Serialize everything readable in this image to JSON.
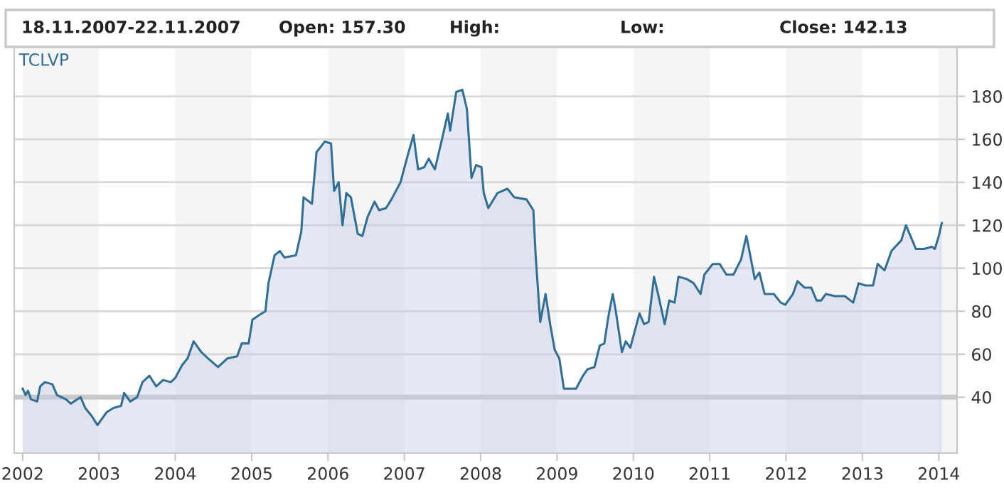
{
  "chart_data": {
    "type": "area",
    "title": "18.11.2007-22.11.2007",
    "annotations": [
      "Open: 157.30",
      "High:",
      "Low:",
      "Close: 142.13"
    ],
    "series": [
      {
        "name": "TCLVP",
        "color": "#336e94",
        "x": [
          2002.0,
          2002.04,
          2002.07,
          2002.11,
          2002.19,
          2002.23,
          2002.29,
          2002.39,
          2002.45,
          2002.57,
          2002.63,
          2002.76,
          2002.82,
          2002.91,
          2002.98,
          2003.1,
          2003.19,
          2003.29,
          2003.33,
          2003.41,
          2003.5,
          2003.57,
          2003.66,
          2003.75,
          2003.84,
          2003.94,
          2004.0,
          2004.09,
          2004.16,
          2004.24,
          2004.34,
          2004.43,
          2004.56,
          2004.68,
          2004.81,
          2004.87,
          2004.96,
          2005.01,
          2005.09,
          2005.18,
          2005.22,
          2005.3,
          2005.37,
          2005.43,
          2005.58,
          2005.65,
          2005.68,
          2005.79,
          2005.85,
          2005.96,
          2006.04,
          2006.08,
          2006.14,
          2006.19,
          2006.24,
          2006.3,
          2006.39,
          2006.45,
          2006.52,
          2006.61,
          2006.67,
          2006.76,
          2006.83,
          2006.95,
          2007.04,
          2007.12,
          2007.18,
          2007.26,
          2007.32,
          2007.4,
          2007.48,
          2007.57,
          2007.6,
          2007.68,
          2007.76,
          2007.82,
          2007.88,
          2007.94,
          2008.01,
          2008.04,
          2008.1,
          2008.22,
          2008.35,
          2008.44,
          2008.6,
          2008.69,
          2008.72,
          2008.78,
          2008.85,
          2008.91,
          2008.97,
          2009.03,
          2009.09,
          2009.25,
          2009.34,
          2009.4,
          2009.49,
          2009.56,
          2009.62,
          2009.67,
          2009.73,
          2009.77,
          2009.85,
          2009.9,
          2009.96,
          2010.08,
          2010.14,
          2010.2,
          2010.27,
          2010.33,
          2010.41,
          2010.47,
          2010.54,
          2010.59,
          2010.7,
          2010.79,
          2010.88,
          2010.93,
          2011.04,
          2011.13,
          2011.22,
          2011.31,
          2011.41,
          2011.48,
          2011.52,
          2011.59,
          2011.65,
          2011.72,
          2011.84,
          2011.93,
          2011.99,
          2012.09,
          2012.15,
          2012.24,
          2012.33,
          2012.4,
          2012.46,
          2012.52,
          2012.64,
          2012.77,
          2012.88,
          2012.95,
          2013.04,
          2013.14,
          2013.2,
          2013.29,
          2013.38,
          2013.51,
          2013.57,
          2013.63,
          2013.7,
          2013.81,
          2013.91,
          2013.95,
          2014.0,
          2014.04
        ],
        "values": [
          44,
          41,
          43,
          39,
          38,
          45,
          47,
          46,
          41,
          39,
          37,
          40,
          35,
          31,
          27,
          33,
          35,
          36,
          42,
          38,
          40,
          47,
          50,
          45,
          48,
          47,
          49,
          55,
          58,
          66,
          61,
          58,
          54,
          58,
          59,
          65,
          65,
          76,
          78,
          80,
          93,
          106,
          108,
          105,
          106,
          117,
          133,
          130,
          154,
          159,
          158,
          136,
          140,
          120,
          135,
          133,
          116,
          115,
          124,
          131,
          127,
          128,
          132,
          140,
          152,
          162,
          146,
          147,
          151,
          146,
          158,
          172,
          164,
          182,
          183,
          174,
          142,
          148,
          147,
          135,
          128,
          135,
          137,
          133,
          132,
          127,
          106,
          75,
          88,
          74,
          62,
          58,
          44,
          44,
          50,
          53,
          54,
          64,
          65,
          77,
          88,
          80,
          61,
          66,
          63,
          79,
          74,
          75,
          96,
          87,
          74,
          85,
          84,
          96,
          95,
          93,
          88,
          97,
          102,
          102,
          97,
          97,
          104,
          115,
          108,
          95,
          98,
          88,
          88,
          84,
          83,
          88,
          94,
          91,
          91,
          85,
          85,
          88,
          87,
          87,
          84,
          93,
          92,
          92,
          102,
          99,
          108,
          113,
          120,
          115,
          109,
          109,
          110,
          109,
          115,
          121
        ]
      }
    ],
    "xlim": [
      2001.89,
      2014.24
    ],
    "xticks": [
      2002,
      2003,
      2004,
      2005,
      2006,
      2007,
      2008,
      2009,
      2010,
      2011,
      2012,
      2013,
      2014
    ],
    "ylim": [
      14,
      203
    ],
    "yticks": [
      40,
      60,
      80,
      100,
      120,
      140,
      160,
      180
    ],
    "grid": "y",
    "ref_lines": [
      {
        "axis": "y",
        "value": 40,
        "color": "#c8c8cc"
      }
    ],
    "bands": [
      {
        "axis": "x",
        "from": 2002,
        "to": 2003,
        "color": "#f5f5f5"
      },
      {
        "axis": "x",
        "from": 2004,
        "to": 2005,
        "color": "#f5f5f5"
      },
      {
        "axis": "x",
        "from": 2006,
        "to": 2007,
        "color": "#f5f5f5"
      },
      {
        "axis": "x",
        "from": 2008,
        "to": 2009,
        "color": "#f5f5f5"
      },
      {
        "axis": "x",
        "from": 2010,
        "to": 2011,
        "color": "#f5f5f5"
      },
      {
        "axis": "x",
        "from": 2012,
        "to": 2013,
        "color": "#f5f5f5"
      },
      {
        "axis": "x",
        "from": 2014,
        "to": 2014.24,
        "color": "#f5f5f5"
      }
    ]
  }
}
